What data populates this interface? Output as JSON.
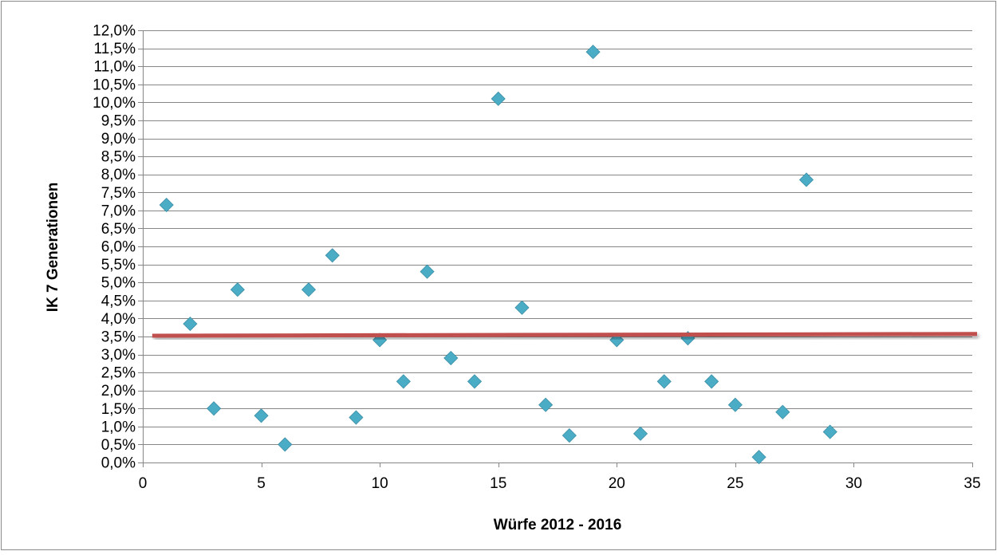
{
  "chart_data": {
    "type": "scatter",
    "title": "",
    "xlabel": "Würfe 2012 - 2016",
    "ylabel": "IK 7 Generationen",
    "xlim": [
      0,
      35
    ],
    "ylim": [
      0,
      12
    ],
    "x_ticks": [
      0,
      5,
      10,
      15,
      20,
      25,
      30,
      35
    ],
    "x_tick_labels": [
      "0",
      "5",
      "10",
      "15",
      "20",
      "25",
      "30",
      "35"
    ],
    "y_ticks": [
      0,
      0.5,
      1,
      1.5,
      2,
      2.5,
      3,
      3.5,
      4,
      4.5,
      5,
      5.5,
      6,
      6.5,
      7,
      7.5,
      8,
      8.5,
      9,
      9.5,
      10,
      10.5,
      11,
      11.5,
      12
    ],
    "y_tick_labels": [
      "0,0%",
      "0,5%",
      "1,0%",
      "1,5%",
      "2,0%",
      "2,5%",
      "3,0%",
      "3,5%",
      "4,0%",
      "4,5%",
      "5,0%",
      "5,5%",
      "6,0%",
      "6,5%",
      "7,0%",
      "7,5%",
      "8,0%",
      "8,5%",
      "9,0%",
      "9,5%",
      "10,0%",
      "10,5%",
      "11,0%",
      "11,5%",
      "12,0%"
    ],
    "y_unit": "%",
    "grid": {
      "horizontal": true,
      "vertical": false
    },
    "legend": "none",
    "marker": "diamond",
    "colors": {
      "points": "#4bacc6",
      "points_edge": "#3c8fa6",
      "reference_line": "#c0504d",
      "grid": "#868686"
    },
    "series": [
      {
        "x": [
          1,
          2,
          3,
          4,
          5,
          6,
          7,
          8,
          9,
          10,
          11,
          12,
          13,
          14,
          15,
          16,
          17,
          18,
          19,
          20,
          21,
          22,
          23,
          24,
          25,
          26,
          27,
          28,
          29
        ],
        "y": [
          7.15,
          3.85,
          1.5,
          4.8,
          1.3,
          0.5,
          4.8,
          5.75,
          1.25,
          3.4,
          2.25,
          5.3,
          2.9,
          2.25,
          10.1,
          4.3,
          1.6,
          0.75,
          11.4,
          3.4,
          0.8,
          2.25,
          3.45,
          2.25,
          1.6,
          0.15,
          1.4,
          7.85,
          0.85
        ]
      }
    ],
    "reference_line": {
      "x": [
        0.4,
        35
      ],
      "y": [
        3.52,
        3.57
      ]
    }
  }
}
